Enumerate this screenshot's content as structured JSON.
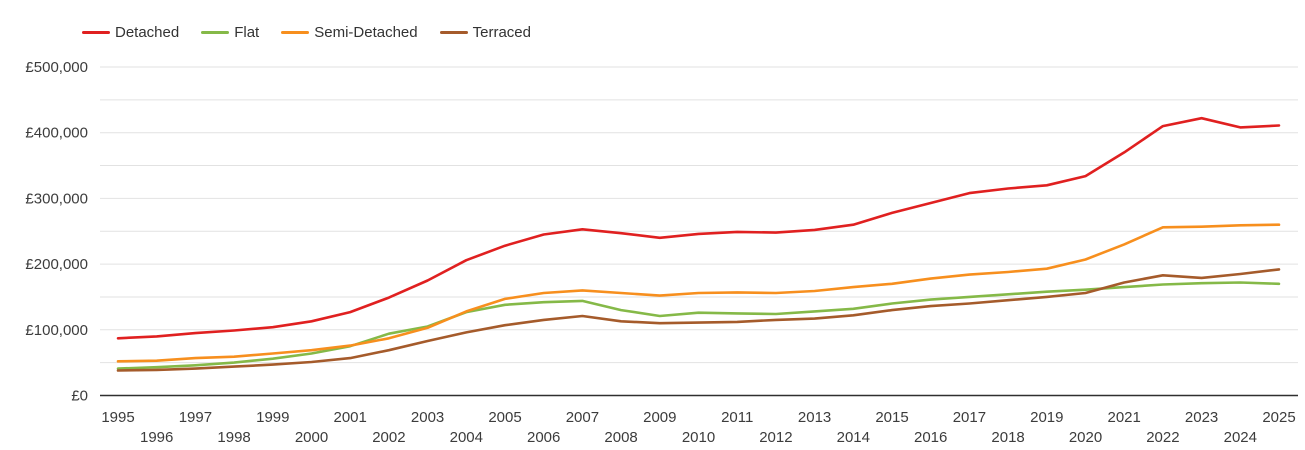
{
  "chart_data": {
    "type": "line",
    "title": "",
    "xlabel": "",
    "ylabel": "",
    "currency": "£",
    "grid": true,
    "legend_position": "top-left",
    "x": [
      1995,
      1996,
      1997,
      1998,
      1999,
      2000,
      2001,
      2002,
      2003,
      2004,
      2005,
      2006,
      2007,
      2008,
      2009,
      2010,
      2011,
      2012,
      2013,
      2014,
      2015,
      2016,
      2017,
      2018,
      2019,
      2020,
      2021,
      2022,
      2023,
      2024,
      2025
    ],
    "series": [
      {
        "name": "Detached",
        "color": "#e02020",
        "values": [
          87000,
          90000,
          95000,
          99000,
          104000,
          113000,
          127000,
          149000,
          175000,
          206000,
          228000,
          245000,
          253000,
          247000,
          240000,
          246000,
          249000,
          248000,
          252000,
          260000,
          278000,
          293000,
          308000,
          315000,
          320000,
          334000,
          370000,
          410000,
          422000,
          408000,
          411000
        ]
      },
      {
        "name": "Flat",
        "color": "#85b948",
        "values": [
          41000,
          43000,
          46000,
          50000,
          56000,
          64000,
          75000,
          94000,
          105000,
          127000,
          138000,
          142000,
          144000,
          130000,
          121000,
          126000,
          125000,
          124000,
          128000,
          132000,
          140000,
          146000,
          150000,
          154000,
          158000,
          161000,
          165000,
          169000,
          171000,
          172000,
          170000
        ]
      },
      {
        "name": "Semi-Detached",
        "color": "#f78f1e",
        "values": [
          52000,
          53000,
          57000,
          59000,
          64000,
          69000,
          76000,
          87000,
          103000,
          128000,
          147000,
          156000,
          160000,
          156000,
          152000,
          156000,
          157000,
          156000,
          159000,
          165000,
          170000,
          178000,
          184000,
          188000,
          193000,
          207000,
          230000,
          256000,
          257000,
          259000,
          260000
        ]
      },
      {
        "name": "Terraced",
        "color": "#a55b2b",
        "values": [
          38000,
          39000,
          41000,
          44000,
          47000,
          51000,
          57000,
          69000,
          83000,
          96000,
          107000,
          115000,
          121000,
          113000,
          110000,
          111000,
          112000,
          115000,
          117000,
          122000,
          130000,
          136000,
          140000,
          145000,
          150000,
          156000,
          172000,
          183000,
          179000,
          185000,
          192000
        ]
      }
    ],
    "ylim": [
      0,
      500000
    ],
    "y_axis": {
      "labels": [
        "£0",
        "£100,000",
        "£200,000",
        "£300,000",
        "£400,000",
        "£500,000"
      ],
      "values": [
        0,
        100000,
        200000,
        300000,
        400000,
        500000
      ],
      "minor_gridline_step": 50000
    },
    "x_tick_labels": [
      "1995",
      "1996",
      "1997",
      "1998",
      "1999",
      "2000",
      "2001",
      "2002",
      "2003",
      "2004",
      "2005",
      "2006",
      "2007",
      "2008",
      "2009",
      "2010",
      "2011",
      "2012",
      "2013",
      "2014",
      "2015",
      "2016",
      "2017",
      "2018",
      "2019",
      "2020",
      "2021",
      "2022",
      "2023",
      "2024",
      "2025"
    ]
  }
}
